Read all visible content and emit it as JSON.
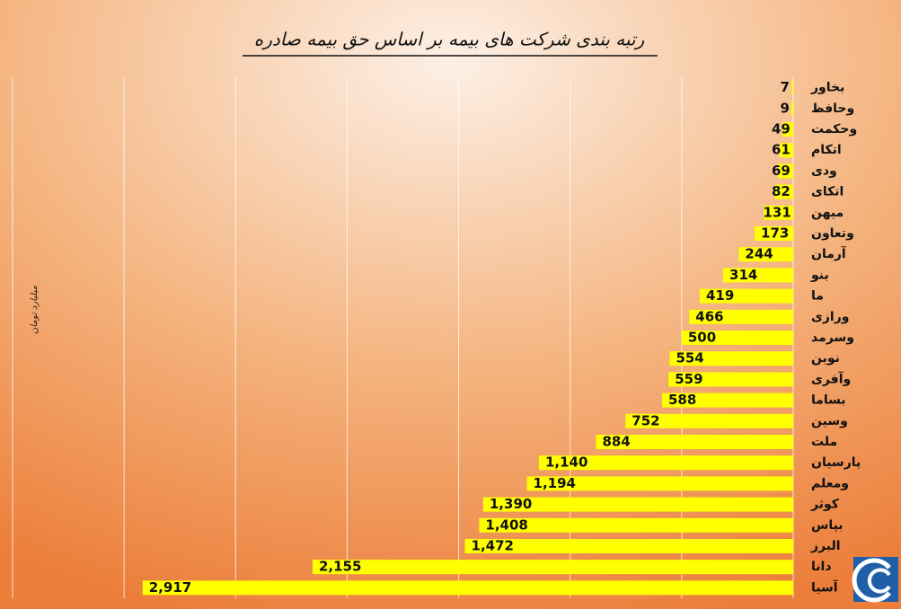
{
  "chart_data": {
    "type": "barh",
    "title": "رتبه بندی شرکت های بیمه بر اساس حق بیمه صادره",
    "y_label": "میلیارد تومان",
    "categories": [
      "بخاور",
      "وحافظ",
      "وحکمت",
      "اتکام",
      "ودی",
      "اتکای",
      "میهن",
      "وتعاون",
      "آرمان",
      "بنو",
      "ما",
      "ورازی",
      "وسرمد",
      "نوین",
      "وآفری",
      "بساما",
      "وسین",
      "ملت",
      "پارسیان",
      "ومعلم",
      "کوثر",
      "بپاس",
      "البرز",
      "دانا",
      "آسیا"
    ],
    "values": [
      7,
      9,
      49,
      61,
      69,
      82,
      131,
      173,
      244,
      314,
      419,
      466,
      500,
      554,
      559,
      588,
      752,
      884,
      1140,
      1194,
      1390,
      1408,
      1472,
      2155,
      2917
    ],
    "value_labels": [
      "7",
      "9",
      "49",
      "61",
      "69",
      "82",
      "131",
      "173",
      "244",
      "314",
      "419",
      "466",
      "500",
      "554",
      "559",
      "588",
      "752",
      "884",
      "1,140",
      "1,194",
      "1,390",
      "1,408",
      "1,472",
      "2,155",
      "2,917"
    ],
    "color": "#ffff00",
    "xlim": [
      0,
      3500
    ],
    "xticks": [
      0,
      500,
      1000,
      1500,
      2000,
      2500,
      3000,
      3500
    ],
    "grid": true
  }
}
